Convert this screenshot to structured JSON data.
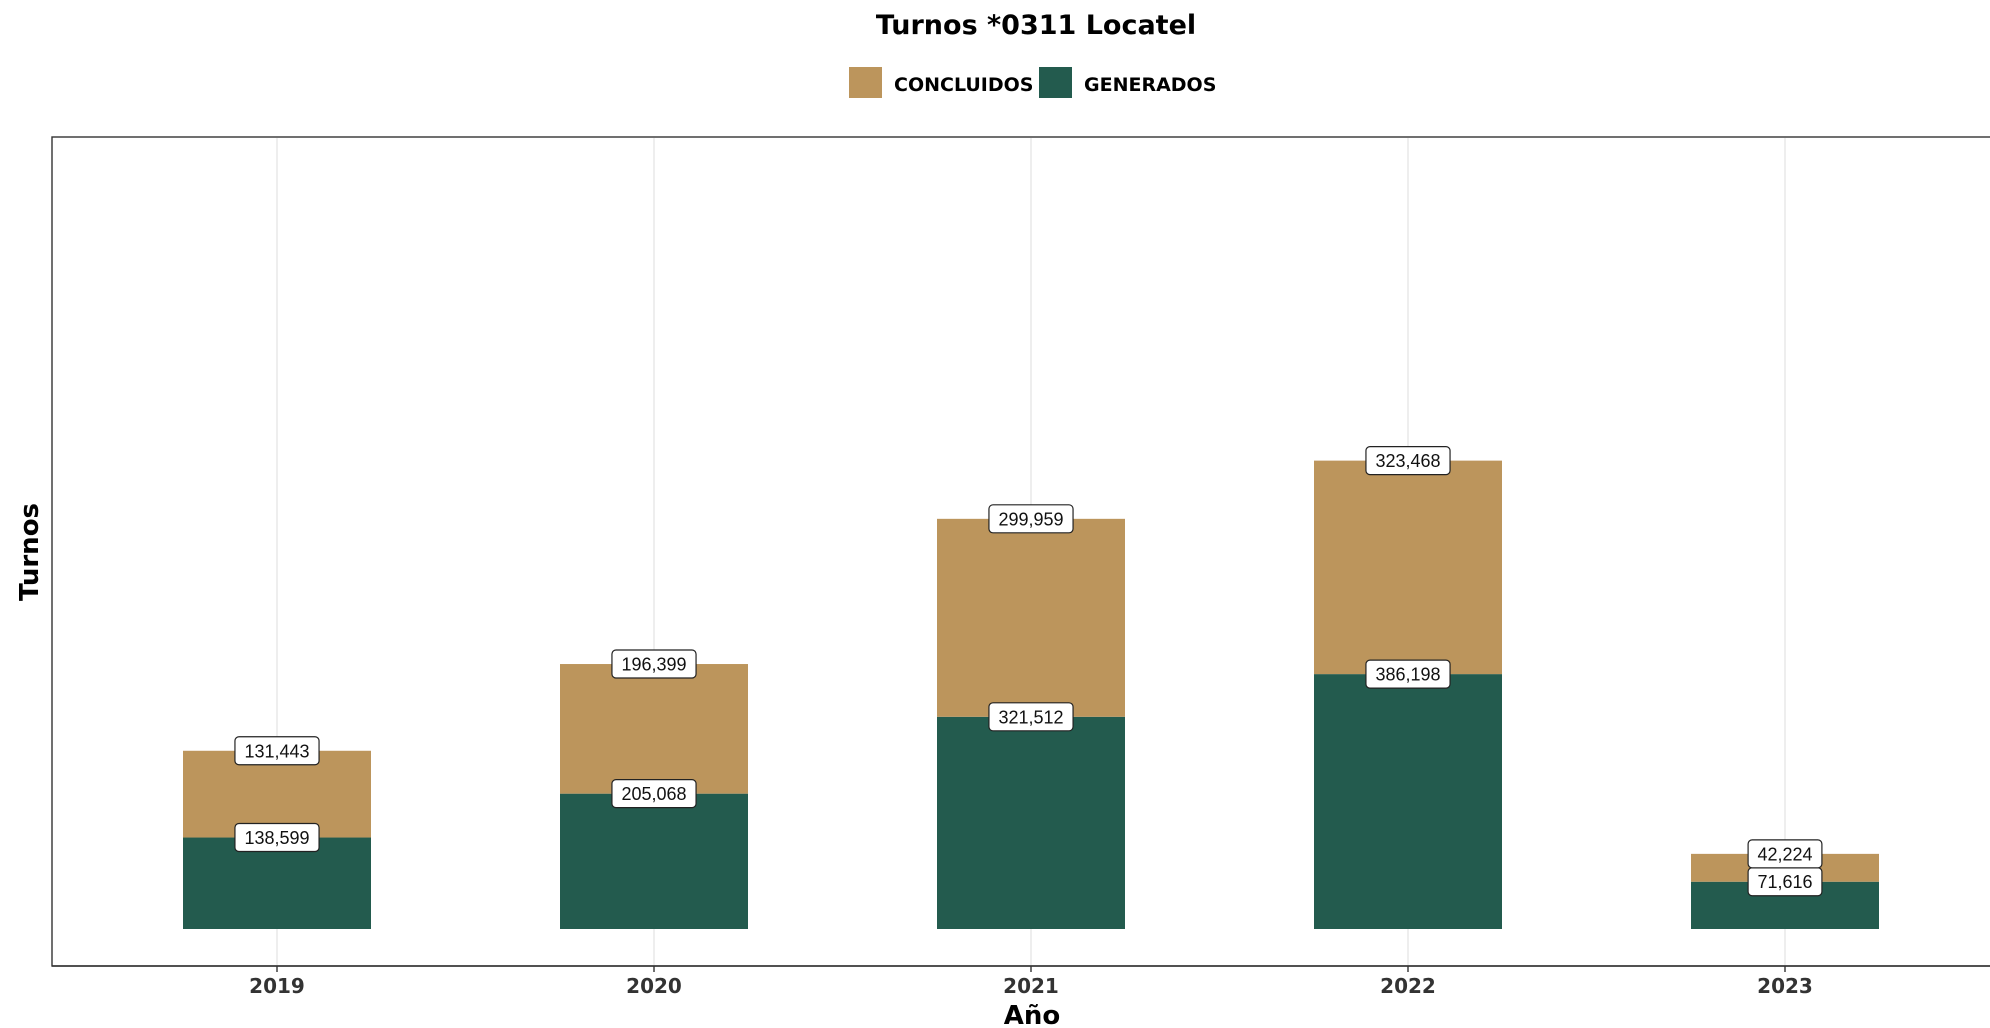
{
  "chart_data": {
    "type": "bar",
    "stacked": true,
    "title": "Turnos *0311 Locatel",
    "xlabel": "Año",
    "ylabel": "Turnos",
    "categories": [
      "2019",
      "2020",
      "2021",
      "2022",
      "2023"
    ],
    "series": [
      {
        "name": "GENERADOS",
        "color": "#235B4E",
        "values": [
          138599,
          205068,
          321512,
          386198,
          71616
        ]
      },
      {
        "name": "CONCLUIDOS",
        "color": "#BC955C",
        "values": [
          131443,
          196399,
          299959,
          323468,
          42224
        ]
      }
    ],
    "legend_order": [
      "CONCLUIDOS",
      "GENERADOS"
    ],
    "legend_position": "top",
    "ylim": [
      0,
      750000
    ],
    "y_ticks_shown": false,
    "grid": {
      "vertical": true,
      "horizontal": false
    }
  }
}
